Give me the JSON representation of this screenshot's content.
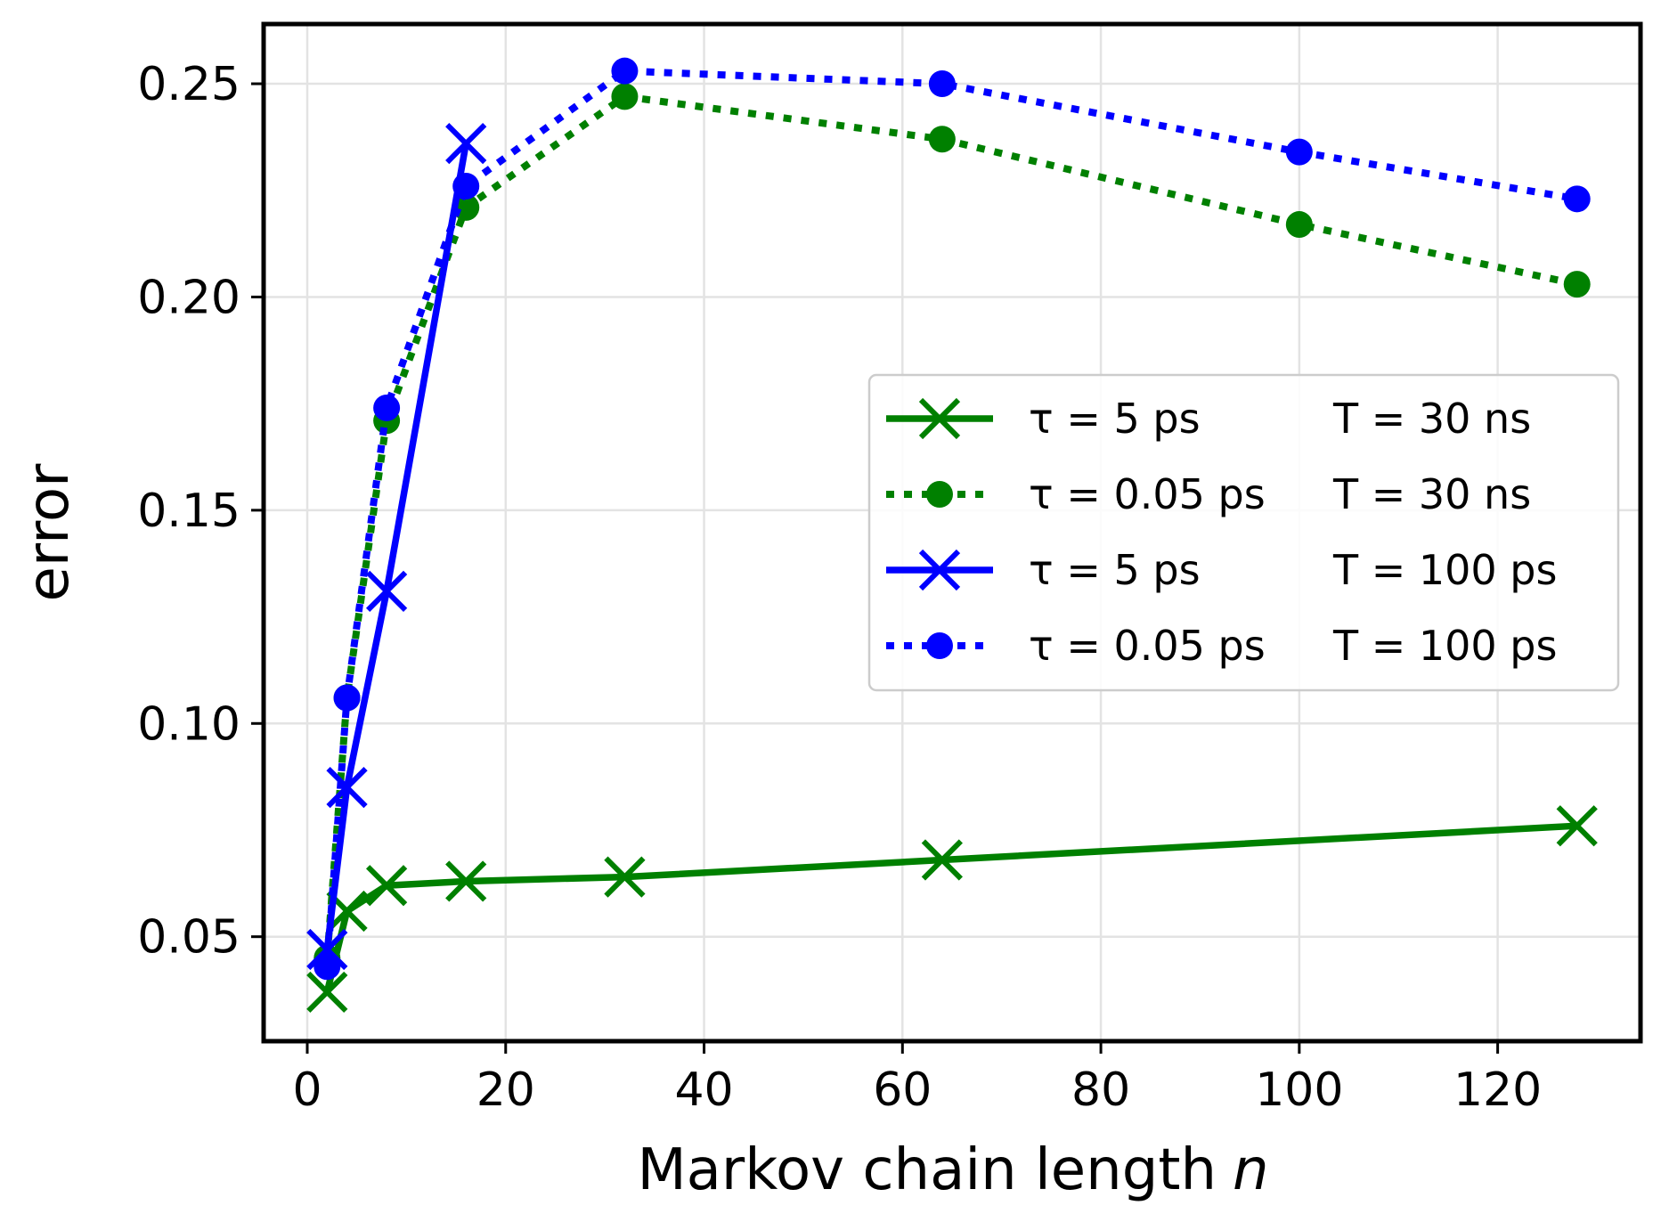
{
  "chart_data": {
    "type": "line",
    "title": "",
    "xlabel": "Markov chain length",
    "xlabel_var": "n",
    "ylabel": "error",
    "xlim": [
      -4.4,
      134.4
    ],
    "ylim": [
      0.0255,
      0.264
    ],
    "xticks": [
      0,
      20,
      40,
      60,
      80,
      100,
      120
    ],
    "xtick_labels": [
      "0",
      "20",
      "40",
      "60",
      "80",
      "100",
      "120"
    ],
    "yticks": [
      0.05,
      0.1,
      0.15,
      0.2,
      0.25
    ],
    "ytick_labels": [
      "0.05",
      "0.10",
      "0.15",
      "0.20",
      "0.25"
    ],
    "grid": true,
    "legend_position": "center-right",
    "series": [
      {
        "name": "τ = 5 ps, T = 30 ns",
        "tau_label": "τ = 5 ps",
        "T_label": "T = 30 ns",
        "color": "#008000",
        "linestyle": "solid",
        "marker": "x",
        "x": [
          2,
          4,
          8,
          16,
          32,
          64,
          128
        ],
        "y": [
          0.037,
          0.056,
          0.062,
          0.063,
          0.064,
          0.068,
          0.076
        ]
      },
      {
        "name": "τ = 0.05 ps, T = 30 ns",
        "tau_label": "τ = 0.05 ps",
        "T_label": "T = 30 ns",
        "color": "#008000",
        "linestyle": "dotted",
        "marker": "o",
        "x": [
          2,
          4,
          8,
          16,
          32,
          64,
          100,
          128
        ],
        "y": [
          0.045,
          0.106,
          0.171,
          0.221,
          0.247,
          0.237,
          0.217,
          0.203
        ]
      },
      {
        "name": "τ = 5 ps, T = 100 ps",
        "tau_label": "τ = 5 ps",
        "T_label": "T = 100 ps",
        "color": "#0000ff",
        "linestyle": "solid",
        "marker": "x",
        "x": [
          2,
          4,
          8,
          16
        ],
        "y": [
          0.047,
          0.085,
          0.131,
          0.236
        ]
      },
      {
        "name": "τ = 0.05 ps, T = 100 ps",
        "tau_label": "τ = 0.05 ps",
        "T_label": "T = 100 ps",
        "color": "#0000ff",
        "linestyle": "dotted",
        "marker": "o",
        "x": [
          2,
          4,
          8,
          16,
          32,
          64,
          100,
          128
        ],
        "y": [
          0.043,
          0.106,
          0.174,
          0.226,
          0.253,
          0.25,
          0.234,
          0.223
        ]
      }
    ]
  }
}
